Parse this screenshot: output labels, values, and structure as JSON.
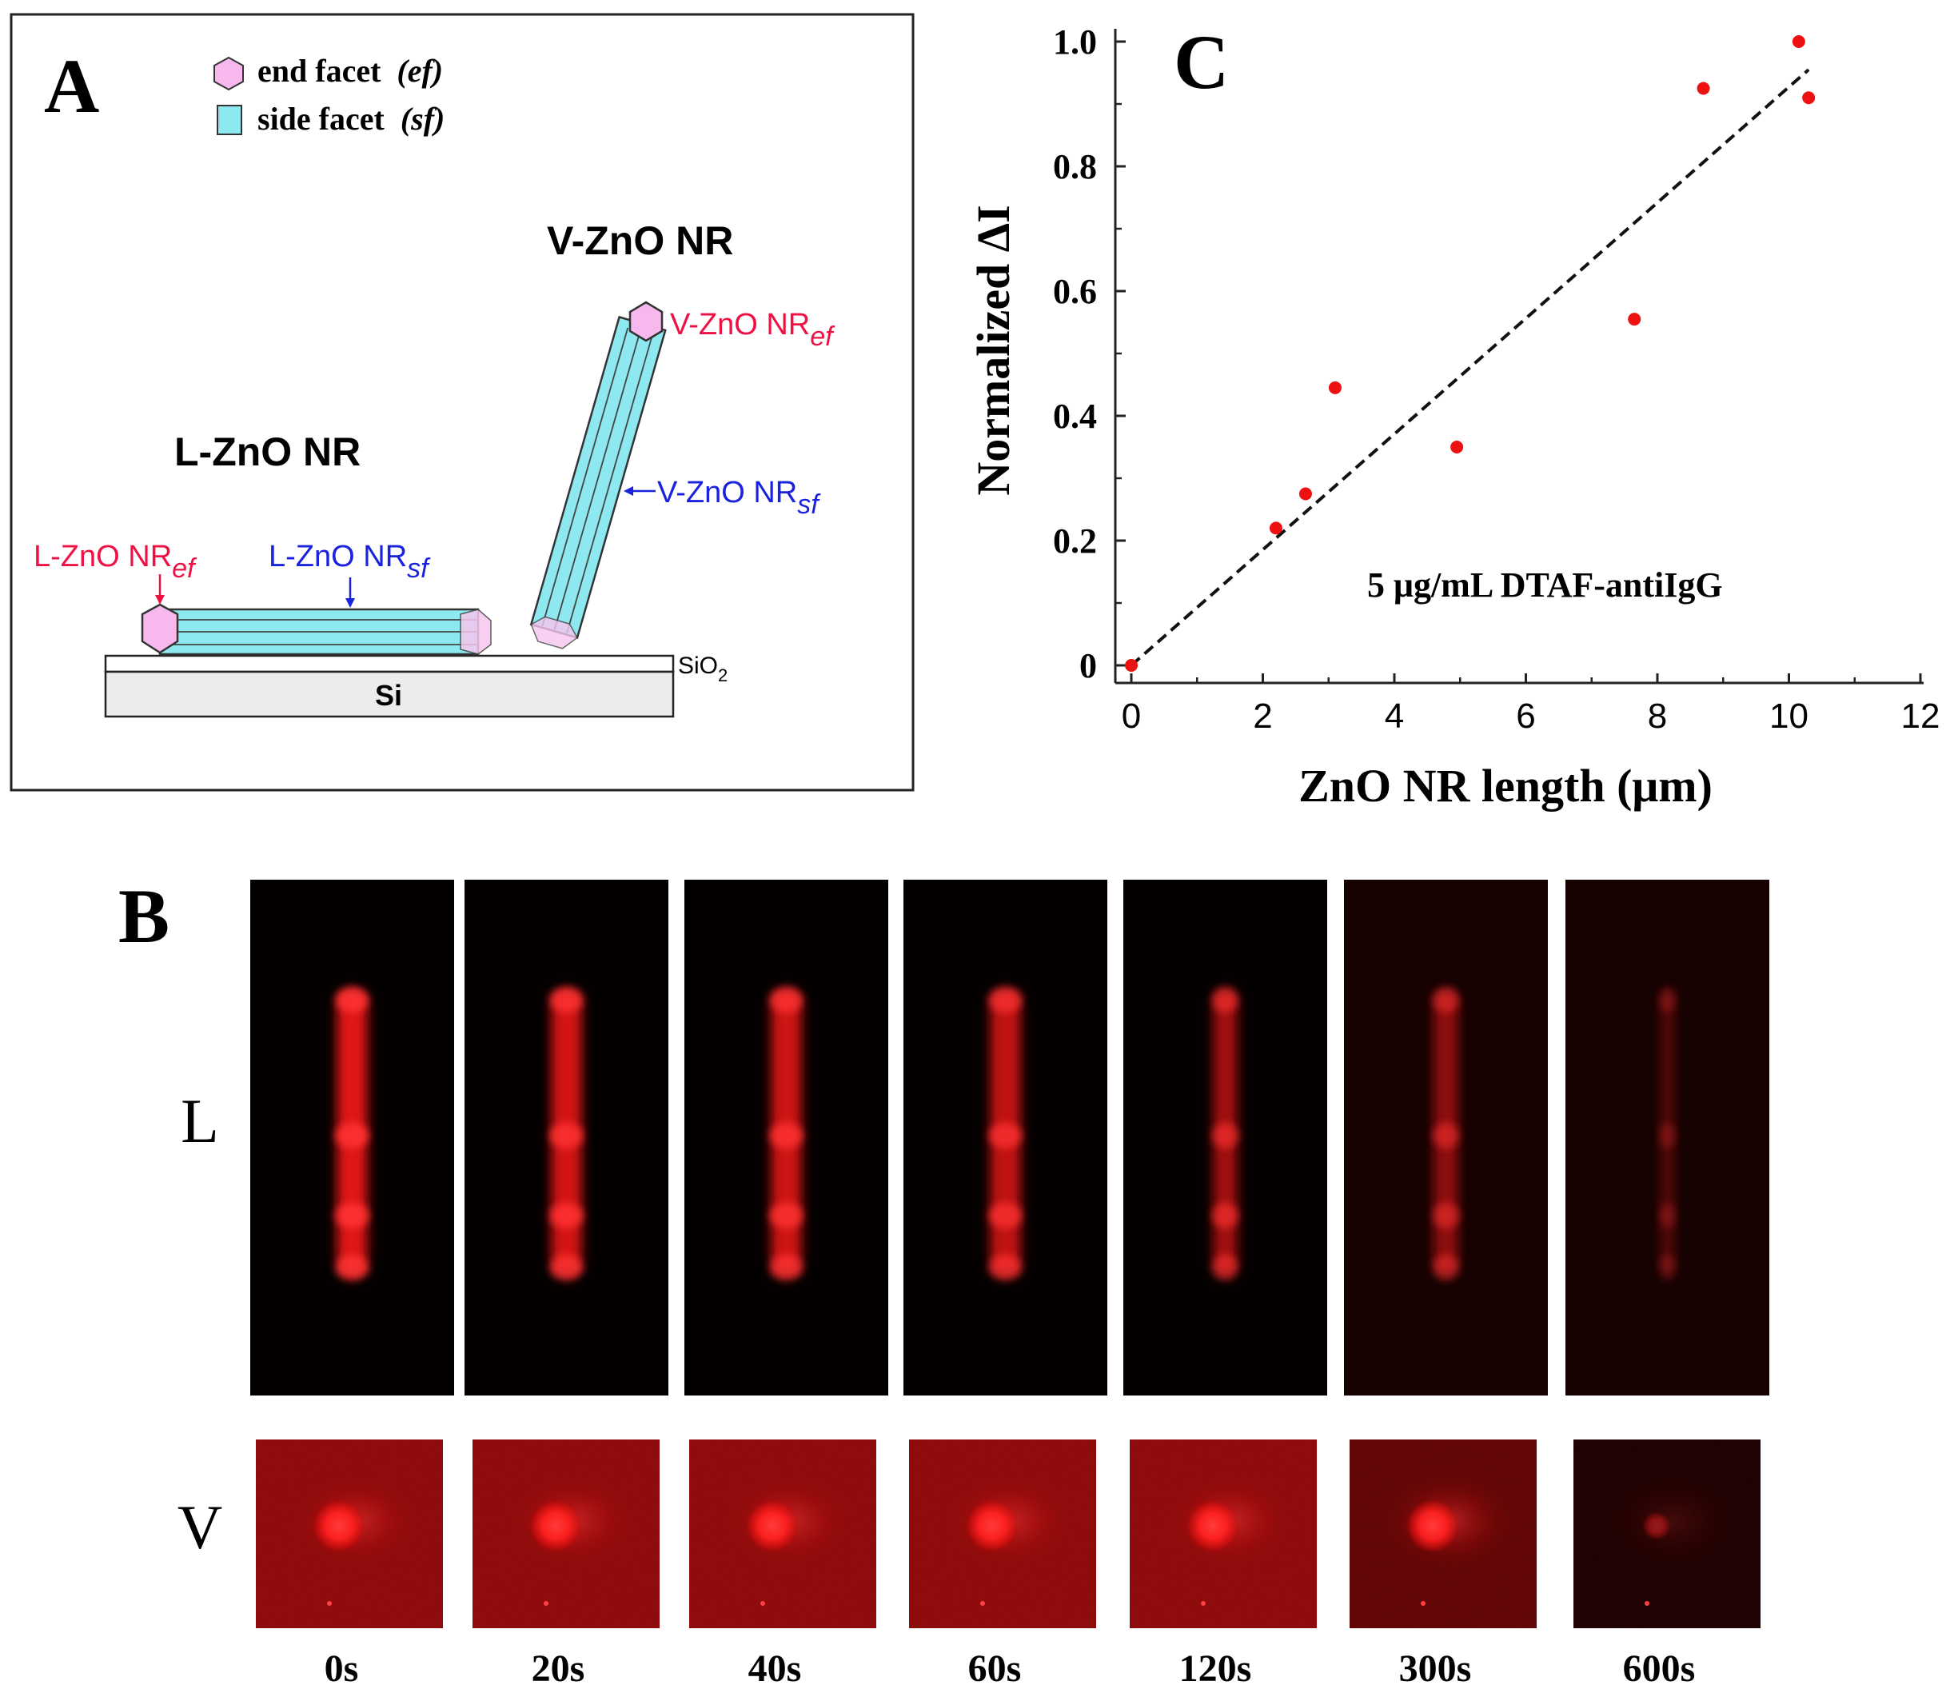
{
  "panel_a": {
    "label": "A",
    "legend": {
      "end_facet_label": "end facet",
      "end_facet_abbr": "(ef)",
      "side_facet_label": "side facet",
      "side_facet_abbr": "(sf)"
    },
    "v_title": "V-ZnO NR",
    "l_title": "L-ZnO NR",
    "v_ef_main": "V-ZnO NR",
    "v_ef_sub": "ef",
    "v_sf_main": "V-ZnO NR",
    "v_sf_sub": "sf",
    "l_ef_main": "L-ZnO NR",
    "l_ef_sub": "ef",
    "l_sf_main": "L-ZnO NR",
    "l_sf_sub": "sf",
    "sio2_main": "SiO",
    "sio2_sub": "2",
    "si_label": "Si",
    "colors": {
      "hexagon": "#f7b8ee",
      "rod": "#8ee8ef",
      "end_label": "#ee1144",
      "side_label": "#1a22dd"
    }
  },
  "panel_b": {
    "label": "B",
    "row_l_label": "L",
    "row_v_label": "V",
    "times": [
      "0s",
      "20s",
      "40s",
      "60s",
      "120s",
      "300s",
      "600s"
    ],
    "brightness": [
      1.0,
      0.95,
      0.92,
      0.86,
      0.72,
      0.6,
      0.3
    ]
  },
  "chart_data": {
    "type": "scatter",
    "panel_label": "C",
    "xlabel": "ZnO NR length (μm)",
    "ylabel": "Normalized ΔI",
    "annotation": "5 μg/mL   DTAF-antiIgG",
    "xlim": [
      0,
      12
    ],
    "ylim": [
      0,
      1.0
    ],
    "xticks": [
      "0",
      "2",
      "4",
      "6",
      "8",
      "10",
      "12"
    ],
    "yticks": [
      "0",
      "0.2",
      "0.4",
      "0.6",
      "0.8",
      "1.0"
    ],
    "points": [
      {
        "x": 0.0,
        "y": 0.0
      },
      {
        "x": 2.2,
        "y": 0.22
      },
      {
        "x": 2.65,
        "y": 0.275
      },
      {
        "x": 3.1,
        "y": 0.445
      },
      {
        "x": 4.95,
        "y": 0.35
      },
      {
        "x": 7.65,
        "y": 0.555
      },
      {
        "x": 8.7,
        "y": 0.925
      },
      {
        "x": 10.15,
        "y": 1.0
      },
      {
        "x": 10.3,
        "y": 0.91
      }
    ],
    "fit_line": {
      "x": [
        0,
        10.3
      ],
      "y": [
        0,
        0.955
      ]
    },
    "point_color": "#ee1111"
  }
}
